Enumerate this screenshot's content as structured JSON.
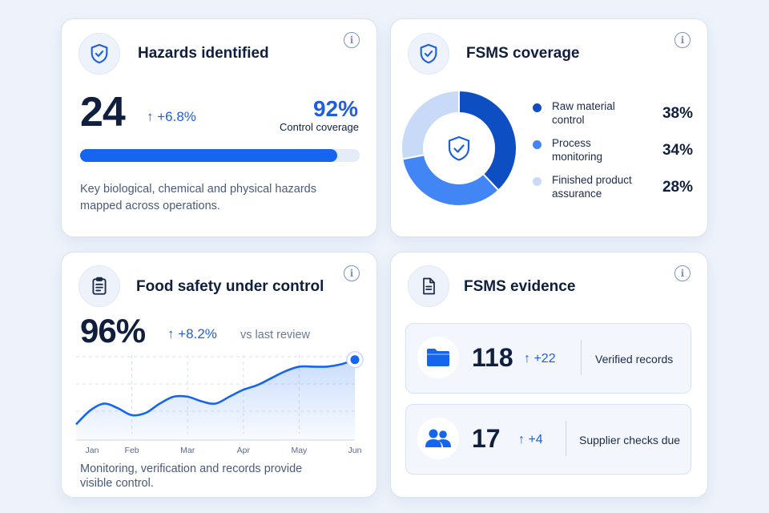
{
  "colors": {
    "accent": "#1565ee",
    "accent_mid": "#4285f4",
    "accent_light": "#c8daf8",
    "accent_dark": "#0d4fc2",
    "text_primary": "#0f1f3d",
    "text_muted": "#4a5a78"
  },
  "hazards": {
    "icon": "shield-check-icon",
    "title": "Hazards identified",
    "value": "24",
    "delta": "↑ +6.8%",
    "coverage_pct": "92%",
    "coverage_label": "Control coverage",
    "progress": 0.92,
    "description": "Key biological, chemical and physical hazards mapped across operations."
  },
  "coverage": {
    "icon": "shield-check-icon",
    "title": "FSMS coverage",
    "legend": [
      {
        "label": "Raw material control",
        "pct": "38%",
        "color": "#0d4fc2"
      },
      {
        "label": "Process monitoring",
        "pct": "34%",
        "color": "#4285f4"
      },
      {
        "label": "Finished product assurance",
        "pct": "28%",
        "color": "#c8daf8"
      }
    ]
  },
  "food_safety": {
    "icon": "clipboard-icon",
    "title": "Food safety under control",
    "value": "96%",
    "delta": "↑ +8.2%",
    "compare": "vs last review",
    "description": "Monitoring, verification and records provide visible control."
  },
  "chart_data": {
    "type": "area",
    "title": "",
    "xlabel": "",
    "ylabel": "",
    "categories": [
      "Jan",
      "Feb",
      "Mar",
      "Apr",
      "May",
      "Jun"
    ],
    "x": [
      0,
      0.25,
      0.5,
      0.75,
      1,
      1.25,
      1.5,
      1.75,
      2,
      2.25,
      2.5,
      2.75,
      3,
      3.25,
      3.5,
      3.75,
      4,
      4.25,
      4.5,
      4.75,
      5
    ],
    "values": [
      82,
      85,
      86.5,
      85.5,
      84,
      84.5,
      86.5,
      88,
      88,
      87,
      86.5,
      88,
      89.5,
      90.5,
      92,
      93.5,
      94.5,
      94.5,
      94.5,
      95,
      96
    ],
    "ylim": [
      80,
      97
    ],
    "grid": true
  },
  "evidence": {
    "icon": "document-icon",
    "title": "FSMS evidence",
    "items": [
      {
        "icon": "folder-icon",
        "value": "118",
        "delta": "↑ +22",
        "label": "Verified records"
      },
      {
        "icon": "users-icon",
        "value": "17",
        "delta": "↑ +4",
        "label": "Supplier checks due"
      }
    ]
  },
  "info_symbol": "i"
}
